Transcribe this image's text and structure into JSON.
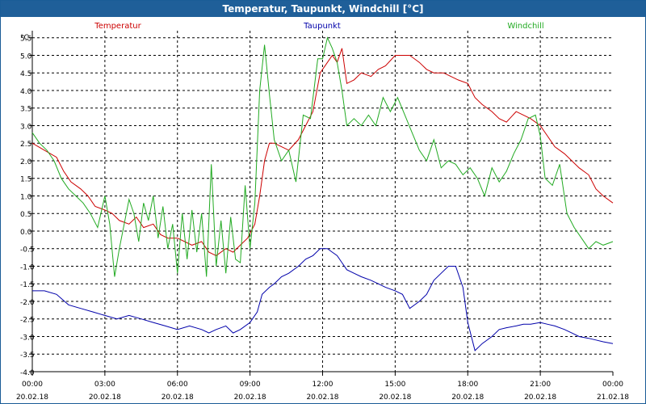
{
  "window": {
    "title": "Temperatur, Taupunkt, Windchill [°C]"
  },
  "chart_data": {
    "type": "line",
    "title": "Temperatur, Taupunkt, Windchill [°C]",
    "ylabel": "°C",
    "xlabel": "",
    "ylim": [
      -4.0,
      5.7
    ],
    "xlim": [
      0,
      24
    ],
    "grid": true,
    "yticks": [
      {
        "v": 5.5,
        "label": "5.5"
      },
      {
        "v": 5.0,
        "label": "5.0"
      },
      {
        "v": 4.5,
        "label": "4.5"
      },
      {
        "v": 4.0,
        "label": "4.0"
      },
      {
        "v": 3.5,
        "label": "3.5"
      },
      {
        "v": 3.0,
        "label": "3.0"
      },
      {
        "v": 2.5,
        "label": "2.5"
      },
      {
        "v": 2.0,
        "label": "2.0"
      },
      {
        "v": 1.5,
        "label": "1.5"
      },
      {
        "v": 1.0,
        "label": "1.0"
      },
      {
        "v": 0.5,
        "label": "0.5"
      },
      {
        "v": 0.0,
        "label": "0.0"
      },
      {
        "v": -0.5,
        "label": "-0.5"
      },
      {
        "v": -1.0,
        "label": "-1.0"
      },
      {
        "v": -1.5,
        "label": "-1.5"
      },
      {
        "v": -2.0,
        "label": "-2.0"
      },
      {
        "v": -2.5,
        "label": "-2.5"
      },
      {
        "v": -3.0,
        "label": "-3.0"
      },
      {
        "v": -3.5,
        "label": "-3.5"
      },
      {
        "v": -4.0,
        "label": "-4.0"
      }
    ],
    "xticks": [
      {
        "h": 0,
        "time": "00:00",
        "date": "20.02.18"
      },
      {
        "h": 3,
        "time": "03:00",
        "date": "20.02.18"
      },
      {
        "h": 6,
        "time": "06:00",
        "date": "20.02.18"
      },
      {
        "h": 9,
        "time": "09:00",
        "date": "20.02.18"
      },
      {
        "h": 12,
        "time": "12:00",
        "date": "20.02.18"
      },
      {
        "h": 15,
        "time": "15:00",
        "date": "20.02.18"
      },
      {
        "h": 18,
        "time": "18:00",
        "date": "20.02.18"
      },
      {
        "h": 21,
        "time": "21:00",
        "date": "20.02.18"
      },
      {
        "h": 24,
        "time": "00:00",
        "date": "21.02.18"
      }
    ],
    "legend": [
      {
        "name": "Temperatur",
        "color": "#cc0000",
        "position": "left"
      },
      {
        "name": "Taupunkt",
        "color": "#0000aa",
        "position": "center"
      },
      {
        "name": "Windchill",
        "color": "#22aa22",
        "position": "right"
      }
    ],
    "series": [
      {
        "name": "Temperatur",
        "color": "#cc0000",
        "x": [
          0,
          0.5,
          1,
          1.3,
          1.6,
          2,
          2.3,
          2.6,
          3,
          3.3,
          3.6,
          4,
          4.3,
          4.6,
          5,
          5.3,
          5.6,
          6,
          6.3,
          6.6,
          7,
          7.3,
          7.6,
          8,
          8.3,
          8.6,
          8.9,
          9.2,
          9.4,
          9.6,
          9.8,
          10,
          10.3,
          10.6,
          11,
          11.3,
          11.6,
          11.9,
          12.2,
          12.4,
          12.6,
          12.8,
          13,
          13.3,
          13.6,
          14,
          14.3,
          14.6,
          15,
          15.3,
          15.6,
          16,
          16.3,
          16.6,
          17,
          17.3,
          17.6,
          18,
          18.3,
          18.6,
          19,
          19.3,
          19.6,
          20,
          20.3,
          20.6,
          21,
          21.3,
          21.6,
          22,
          22.3,
          22.6,
          23,
          23.3,
          23.6,
          24
        ],
        "values": [
          2.5,
          2.3,
          2.1,
          1.7,
          1.4,
          1.2,
          1.0,
          0.7,
          0.6,
          0.5,
          0.3,
          0.2,
          0.4,
          0.1,
          0.2,
          -0.1,
          -0.2,
          -0.2,
          -0.3,
          -0.4,
          -0.3,
          -0.6,
          -0.7,
          -0.5,
          -0.6,
          -0.4,
          -0.2,
          0.2,
          1.0,
          2.0,
          2.5,
          2.5,
          2.4,
          2.3,
          2.6,
          3.0,
          3.4,
          4.5,
          4.8,
          5.0,
          4.8,
          5.2,
          4.2,
          4.3,
          4.5,
          4.4,
          4.6,
          4.7,
          5.0,
          5.0,
          5.0,
          4.8,
          4.6,
          4.5,
          4.5,
          4.4,
          4.3,
          4.2,
          3.8,
          3.6,
          3.4,
          3.2,
          3.1,
          3.4,
          3.3,
          3.2,
          3.0,
          2.7,
          2.4,
          2.2,
          2.0,
          1.8,
          1.6,
          1.2,
          1.0,
          0.8
        ]
      },
      {
        "name": "Taupunkt",
        "color": "#0000aa",
        "x": [
          0,
          0.5,
          1,
          1.5,
          2,
          2.5,
          3,
          3.5,
          4,
          4.5,
          5,
          5.5,
          6,
          6.5,
          7,
          7.3,
          7.6,
          8,
          8.3,
          8.6,
          9,
          9.3,
          9.5,
          9.8,
          10,
          10.3,
          10.6,
          11,
          11.3,
          11.6,
          11.9,
          12.2,
          12.4,
          12.6,
          12.8,
          13,
          13.3,
          13.6,
          14,
          14.3,
          14.6,
          15,
          15.3,
          15.6,
          16,
          16.3,
          16.6,
          16.9,
          17.2,
          17.5,
          17.8,
          18,
          18.3,
          18.6,
          19,
          19.3,
          19.6,
          20,
          20.3,
          20.6,
          21,
          21.3,
          21.6,
          22,
          22.3,
          22.6,
          23,
          23.3,
          23.6,
          24
        ],
        "values": [
          -1.7,
          -1.7,
          -1.8,
          -2.1,
          -2.2,
          -2.3,
          -2.4,
          -2.5,
          -2.4,
          -2.5,
          -2.6,
          -2.7,
          -2.8,
          -2.7,
          -2.8,
          -2.9,
          -2.8,
          -2.7,
          -2.9,
          -2.8,
          -2.6,
          -2.3,
          -1.8,
          -1.6,
          -1.5,
          -1.3,
          -1.2,
          -1.0,
          -0.8,
          -0.7,
          -0.5,
          -0.5,
          -0.6,
          -0.7,
          -0.9,
          -1.1,
          -1.2,
          -1.3,
          -1.4,
          -1.5,
          -1.6,
          -1.7,
          -1.8,
          -2.2,
          -2.0,
          -1.8,
          -1.4,
          -1.2,
          -1.0,
          -1.0,
          -1.6,
          -2.6,
          -3.4,
          -3.2,
          -3.0,
          -2.8,
          -2.75,
          -2.7,
          -2.65,
          -2.65,
          -2.6,
          -2.65,
          -2.7,
          -2.8,
          -2.9,
          -3.0,
          -3.05,
          -3.1,
          -3.15,
          -3.2
        ]
      },
      {
        "name": "Windchill",
        "color": "#22aa22",
        "x": [
          0,
          0.3,
          0.6,
          0.9,
          1.2,
          1.5,
          1.8,
          2.1,
          2.4,
          2.7,
          3.0,
          3.2,
          3.4,
          3.6,
          3.8,
          4.0,
          4.2,
          4.4,
          4.6,
          4.8,
          5.0,
          5.2,
          5.4,
          5.6,
          5.8,
          6.0,
          6.2,
          6.4,
          6.6,
          6.8,
          7.0,
          7.2,
          7.4,
          7.6,
          7.8,
          8.0,
          8.2,
          8.4,
          8.6,
          8.8,
          9.0,
          9.2,
          9.4,
          9.6,
          9.8,
          10.0,
          10.3,
          10.6,
          10.9,
          11.2,
          11.5,
          11.8,
          12.0,
          12.2,
          12.4,
          12.6,
          12.8,
          13.0,
          13.3,
          13.6,
          13.9,
          14.2,
          14.5,
          14.8,
          15.1,
          15.4,
          15.7,
          16.0,
          16.3,
          16.6,
          16.9,
          17.2,
          17.5,
          17.8,
          18.1,
          18.4,
          18.7,
          19.0,
          19.3,
          19.6,
          19.9,
          20.2,
          20.5,
          20.8,
          21.0,
          21.2,
          21.5,
          21.8,
          22.1,
          22.4,
          22.7,
          23.0,
          23.3,
          23.6,
          24.0
        ],
        "values": [
          2.8,
          2.5,
          2.3,
          2.0,
          1.5,
          1.2,
          1.0,
          0.8,
          0.5,
          0.1,
          1.0,
          0.2,
          -1.3,
          -0.5,
          0.2,
          0.9,
          0.5,
          -0.3,
          0.8,
          0.3,
          1.0,
          -0.2,
          0.7,
          -0.5,
          0.2,
          -1.2,
          0.5,
          -0.8,
          0.6,
          -0.6,
          0.5,
          -1.3,
          1.9,
          -1.0,
          0.3,
          -1.2,
          0.4,
          -0.8,
          -0.9,
          1.3,
          -0.5,
          0.8,
          4.0,
          5.3,
          3.9,
          2.6,
          2.0,
          2.3,
          1.4,
          3.3,
          3.2,
          4.9,
          4.9,
          5.5,
          5.2,
          4.8,
          4.0,
          3.0,
          3.2,
          3.0,
          3.3,
          3.0,
          3.8,
          3.4,
          3.8,
          3.3,
          2.8,
          2.3,
          2.0,
          2.6,
          1.8,
          2.0,
          1.9,
          1.6,
          1.8,
          1.5,
          1.0,
          1.8,
          1.4,
          1.7,
          2.2,
          2.6,
          3.2,
          3.3,
          2.7,
          1.5,
          1.3,
          1.9,
          0.5,
          0.1,
          -0.2,
          -0.5,
          -0.3,
          -0.4,
          -0.3
        ]
      }
    ]
  }
}
